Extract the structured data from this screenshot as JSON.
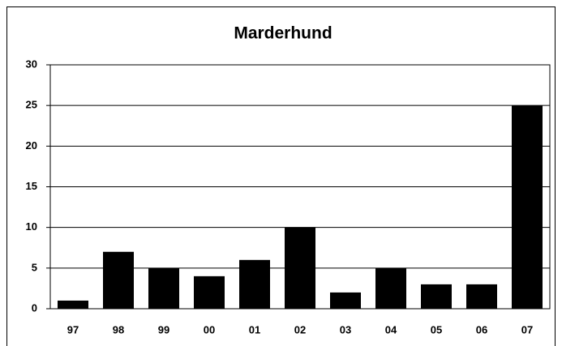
{
  "chart_data": {
    "type": "bar",
    "title": "Marderhund",
    "categories": [
      "97",
      "98",
      "99",
      "00",
      "01",
      "02",
      "03",
      "04",
      "05",
      "06",
      "07"
    ],
    "values": [
      1,
      7,
      5,
      4,
      6,
      10,
      2,
      5,
      3,
      3,
      25
    ],
    "color": "#000000",
    "ylim": [
      0,
      30
    ],
    "yticks": [
      0,
      5,
      10,
      15,
      20,
      25,
      30
    ],
    "grid": true
  }
}
